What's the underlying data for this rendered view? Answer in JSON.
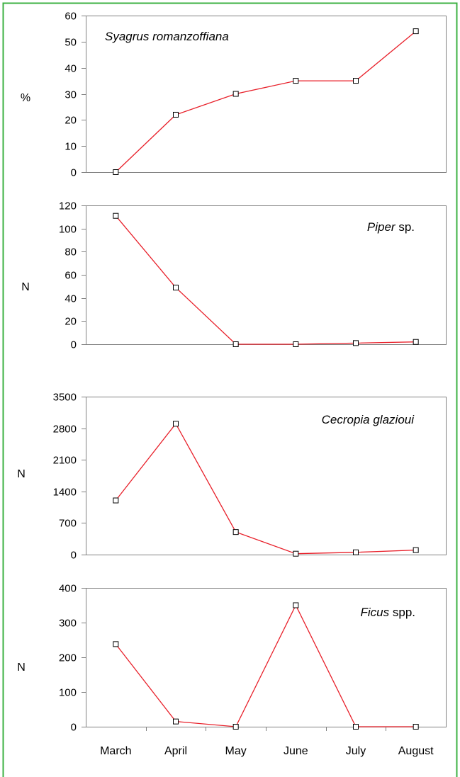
{
  "chart_data": [
    {
      "type": "line",
      "title_italic": "Syagrus romanzoffiana",
      "title_plain": "",
      "ylabel": "%",
      "categories": [
        "March",
        "April",
        "May",
        "June",
        "July",
        "August"
      ],
      "ylim": [
        0,
        60
      ],
      "yticks": [
        0,
        10,
        20,
        30,
        40,
        50,
        60
      ],
      "series": [
        {
          "values": [
            0,
            22,
            30,
            35,
            35,
            54
          ]
        }
      ]
    },
    {
      "type": "line",
      "title_italic": "Piper",
      "title_plain": " sp.",
      "ylabel": "N",
      "categories": [
        "March",
        "April",
        "May",
        "June",
        "July",
        "August"
      ],
      "ylim": [
        0,
        120
      ],
      "yticks": [
        0,
        20,
        40,
        60,
        80,
        100,
        120
      ],
      "series": [
        {
          "values": [
            111,
            49,
            0,
            0,
            1,
            2
          ]
        }
      ]
    },
    {
      "type": "line",
      "title_italic": "Cecropia glazioui",
      "title_plain": "",
      "ylabel": "N",
      "categories": [
        "March",
        "April",
        "May",
        "June",
        "July",
        "August"
      ],
      "ylim": [
        0,
        3500
      ],
      "yticks": [
        0,
        700,
        1400,
        2100,
        2800,
        3500
      ],
      "series": [
        {
          "values": [
            1200,
            2900,
            500,
            20,
            50,
            100
          ]
        }
      ]
    },
    {
      "type": "line",
      "title_italic": "Ficus",
      "title_plain": " spp.",
      "ylabel": "N",
      "categories": [
        "March",
        "April",
        "May",
        "June",
        "July",
        "August"
      ],
      "ylim": [
        0,
        400
      ],
      "yticks": [
        0,
        100,
        200,
        300,
        400
      ],
      "series": [
        {
          "values": [
            238,
            15,
            0,
            350,
            0,
            0
          ]
        }
      ]
    }
  ],
  "colors": {
    "line": "#e8202a",
    "marker": "#000000",
    "axis": "#808080",
    "frame": "#3cb043"
  }
}
